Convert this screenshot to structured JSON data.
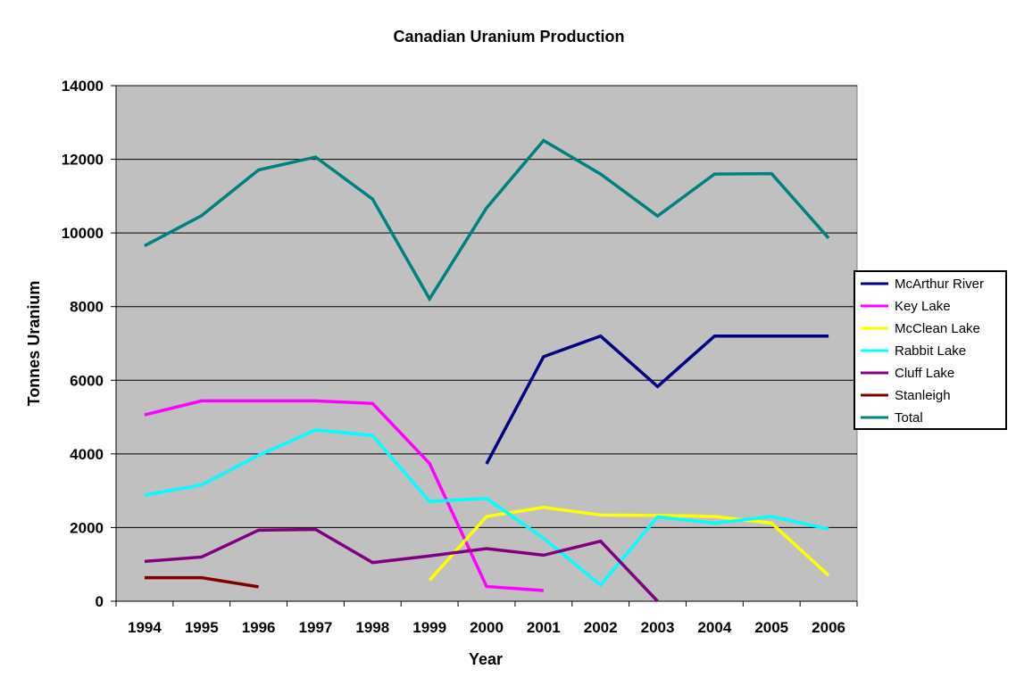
{
  "chart_data": {
    "type": "line",
    "title": "Canadian Uranium Production",
    "xlabel": "Year",
    "ylabel": "Tonnes Uranium",
    "categories": [
      "1994",
      "1995",
      "1996",
      "1997",
      "1998",
      "1999",
      "2000",
      "2001",
      "2002",
      "2003",
      "2004",
      "2005",
      "2006"
    ],
    "ylim": [
      0,
      14000
    ],
    "yticks": [
      0,
      2000,
      4000,
      6000,
      8000,
      10000,
      12000,
      14000
    ],
    "grid": "horizontal",
    "plot_background": "#C0C0C0",
    "legend_position": "right",
    "series": [
      {
        "name": "McArthur River",
        "color": "#000080",
        "values": [
          null,
          null,
          null,
          null,
          null,
          null,
          3730,
          6640,
          7200,
          5830,
          7200,
          7200,
          7200
        ]
      },
      {
        "name": "Key Lake",
        "color": "#FF00FF",
        "values": [
          5060,
          5440,
          5440,
          5440,
          5370,
          3740,
          400,
          290,
          null,
          null,
          null,
          null,
          null
        ]
      },
      {
        "name": "McClean Lake",
        "color": "#FFFF00",
        "values": [
          null,
          null,
          null,
          null,
          null,
          570,
          2300,
          2550,
          2340,
          2330,
          2300,
          2120,
          700
        ]
      },
      {
        "name": "Rabbit Lake",
        "color": "#00FFFF",
        "values": [
          2880,
          3160,
          3960,
          4650,
          4500,
          2710,
          2790,
          1710,
          440,
          2290,
          2120,
          2300,
          1960
        ]
      },
      {
        "name": "Cluff Lake",
        "color": "#800080",
        "values": [
          1080,
          1200,
          1930,
          1950,
          1050,
          1230,
          1430,
          1250,
          1630,
          0,
          null,
          null,
          null
        ]
      },
      {
        "name": "Stanleigh",
        "color": "#800000",
        "values": [
          640,
          640,
          390,
          null,
          null,
          null,
          null,
          null,
          null,
          null,
          null,
          null,
          null
        ]
      },
      {
        "name": "Total",
        "color": "#008080",
        "values": [
          9650,
          10470,
          11710,
          12060,
          10920,
          8210,
          10680,
          12510,
          11600,
          10460,
          11600,
          11610,
          9860
        ]
      }
    ]
  }
}
